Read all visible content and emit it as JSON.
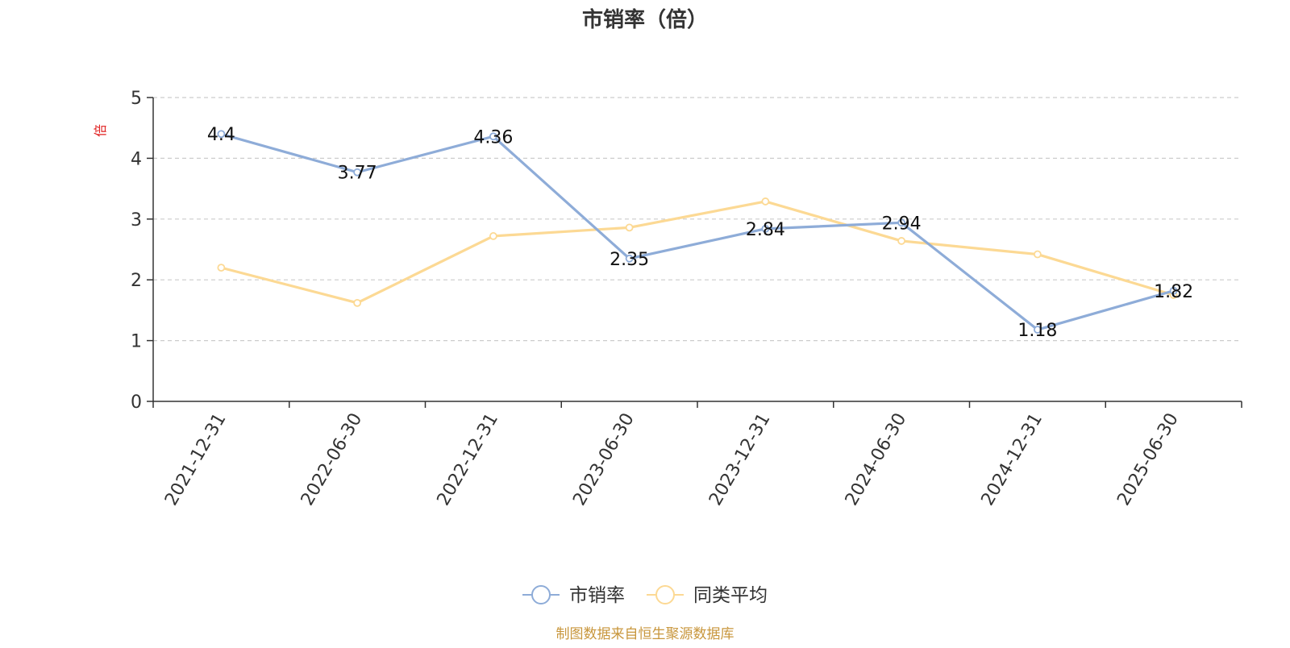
{
  "chart_data": {
    "type": "line",
    "title": "市销率（倍）",
    "ylabel": "倍",
    "xlabel": "",
    "categories": [
      "2021-12-31",
      "2022-06-30",
      "2022-12-31",
      "2023-06-30",
      "2023-12-31",
      "2024-06-30",
      "2024-12-31",
      "2025-06-30"
    ],
    "series": [
      {
        "name": "市销率",
        "values": [
          4.4,
          3.77,
          4.36,
          2.35,
          2.84,
          2.94,
          1.18,
          1.82
        ],
        "color": "#8eacd8",
        "show_labels": true
      },
      {
        "name": "同类平均",
        "values": [
          2.2,
          1.62,
          2.72,
          2.86,
          3.29,
          2.64,
          2.42,
          1.75
        ],
        "color": "#fcd994",
        "show_labels": false
      }
    ],
    "ylim": [
      0,
      5
    ],
    "yticks": [
      0,
      1,
      2,
      3,
      4,
      5
    ],
    "grid": true,
    "legend_position": "bottom-center"
  },
  "footer": {
    "source": "制图数据来自恒生聚源数据库"
  },
  "colors": {
    "title": "#333333",
    "axis": "#333333",
    "grid": "#cccccc",
    "ylabel": "#e02020",
    "label": "#111111",
    "source": "#c8963c"
  }
}
